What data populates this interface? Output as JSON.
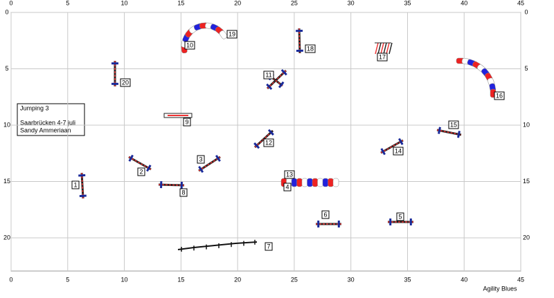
{
  "course": {
    "info": [
      "Jumping 3",
      "Saarbrücken 4-7 juli",
      "Sandy Ammeriaan"
    ],
    "credit": "Agility Blues",
    "xticks": [
      0,
      5,
      10,
      15,
      20,
      25,
      30,
      35,
      40,
      45
    ],
    "yticks": [
      0,
      5,
      10,
      15,
      20
    ],
    "obstacles": [
      "1",
      "2",
      "3",
      "4",
      "5",
      "6",
      "7",
      "8",
      "9",
      "10",
      "11",
      "12",
      "13",
      "14",
      "15",
      "16",
      "17",
      "18",
      "19",
      "20"
    ]
  }
}
